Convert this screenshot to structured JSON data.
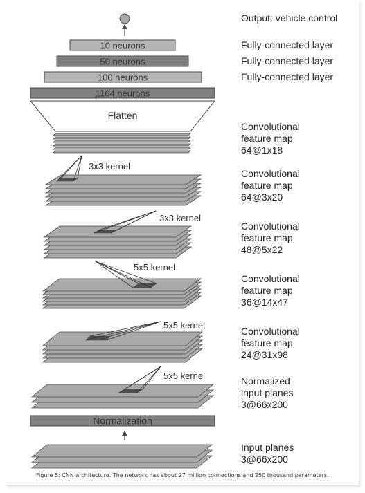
{
  "figure": {
    "caption": "Figure 5: CNN architecture. The network has about 27 million connections and 250 thousand parameters.",
    "colors": {
      "plane_fill": "#a9a9a9",
      "plane_stroke": "#4a4a4a",
      "dark_bar": "#808080",
      "light_bar": "#b4b4b4",
      "kernel_patch": "#4d4d4d"
    },
    "output_label": "Output: vehicle control",
    "dense_layers": [
      {
        "label": "10 neurons",
        "desc": "Fully-connected layer"
      },
      {
        "label": "50 neurons",
        "desc": "Fully-connected layer"
      },
      {
        "label": "100 neurons",
        "desc": "Fully-connected layer"
      },
      {
        "label": "1164 neurons",
        "desc": ""
      }
    ],
    "flatten_label": "Flatten",
    "feature_maps": [
      {
        "line1": "Convolutional",
        "line2": "feature map",
        "line3": "64@1x18"
      },
      {
        "line1": "Convolutional",
        "line2": "feature map",
        "line3": "64@3x20"
      },
      {
        "line1": "Convolutional",
        "line2": "feature map",
        "line3": "48@5x22"
      },
      {
        "line1": "Convolutional",
        "line2": "feature map",
        "line3": "36@14x47"
      },
      {
        "line1": "Convolutional",
        "line2": "feature map",
        "line3": "24@31x98"
      }
    ],
    "normalized_planes": {
      "line1": "Normalized",
      "line2": "input planes",
      "line3": "3@66x200"
    },
    "kernels": [
      "3x3 kernel",
      "3x3 kernel",
      "5x5 kernel",
      "5x5 kernel",
      "5x5 kernel"
    ],
    "normalization_label": "Normalization",
    "input_planes": {
      "line1": "Input planes",
      "line2": "3@66x200"
    }
  }
}
